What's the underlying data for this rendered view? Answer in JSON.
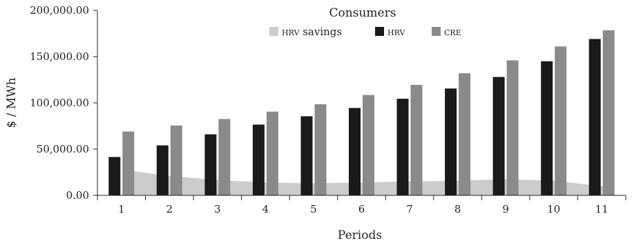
{
  "chart_data": {
    "type": "bar",
    "title": "Consumers",
    "xlabel": "Periods",
    "ylabel": "$ / MWh",
    "categories": [
      "1",
      "2",
      "3",
      "4",
      "5",
      "6",
      "7",
      "8",
      "9",
      "10",
      "11"
    ],
    "ylim": [
      0,
      200000
    ],
    "yticks": [
      "0.00",
      "50,000.00",
      "100,000.00",
      "150,000.00",
      "200,000.00"
    ],
    "ytick_values": [
      0,
      50000,
      100000,
      150000,
      200000
    ],
    "legend_position": "top-center",
    "series": [
      {
        "name": "HRV savings",
        "type": "area",
        "color": "#cccccc",
        "values": [
          27500,
          21000,
          16500,
          14000,
          13000,
          14000,
          15000,
          16000,
          17500,
          16000,
          9500
        ]
      },
      {
        "name": "HRV",
        "type": "bar",
        "color": "#1a1a1a",
        "values": [
          41500,
          54000,
          66000,
          76500,
          85500,
          94500,
          104500,
          115500,
          128000,
          145000,
          169000
        ]
      },
      {
        "name": "CRE",
        "type": "bar",
        "color": "#8a8a8c",
        "values": [
          69000,
          75500,
          82500,
          90500,
          98500,
          108500,
          119500,
          132000,
          146000,
          161000,
          178500
        ]
      }
    ]
  }
}
